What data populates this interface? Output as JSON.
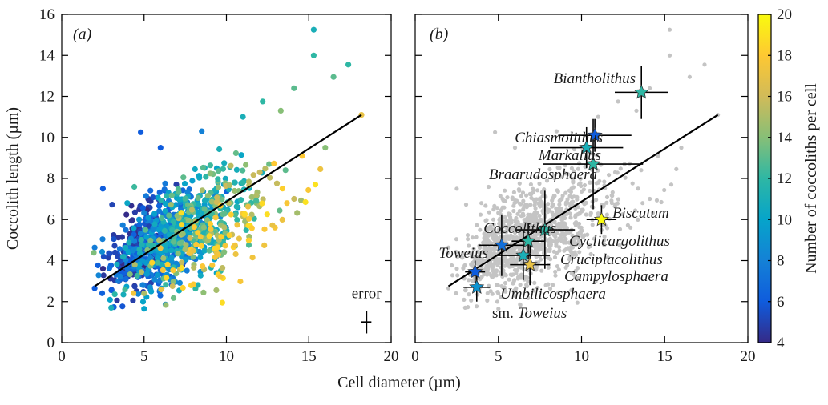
{
  "chart_data": [
    {
      "panel": "a",
      "type": "scatter",
      "panel_label": "(a)",
      "xlabel": "Cell diameter (µm)",
      "ylabel": "Coccolith length (µm)",
      "xlim": [
        0,
        20
      ],
      "ylim": [
        0,
        16
      ],
      "xticks": [
        0,
        5,
        10,
        15,
        20
      ],
      "yticks": [
        0,
        2,
        4,
        6,
        8,
        10,
        12,
        14,
        16
      ],
      "color_by": "Number of coccoliths per cell",
      "colormap": "parula",
      "fit_line": {
        "x": [
          2.0,
          18.2
        ],
        "y": [
          2.75,
          11.1
        ]
      },
      "error_label": "error",
      "error_bar": {
        "x": 18.5,
        "y": 1.0,
        "xerr": 0.3,
        "yerr": 0.55
      },
      "point_groups": [
        {
          "color_value": 5,
          "center": [
            4.6,
            4.7
          ],
          "sd": [
            1.0,
            1.05
          ],
          "count": 200
        },
        {
          "color_value": 7,
          "center": [
            5.9,
            4.8
          ],
          "sd": [
            1.3,
            1.05
          ],
          "count": 240
        },
        {
          "color_value": 9,
          "center": [
            6.9,
            5.0
          ],
          "sd": [
            1.6,
            1.05
          ],
          "count": 220
        },
        {
          "color_value": 11,
          "center": [
            8.0,
            5.8
          ],
          "sd": [
            1.9,
            1.3
          ],
          "count": 170
        },
        {
          "color_value": 13,
          "center": [
            8.6,
            5.9
          ],
          "sd": [
            2.0,
            1.4
          ],
          "count": 110
        },
        {
          "color_value": 15,
          "center": [
            9.1,
            5.6
          ],
          "sd": [
            2.0,
            1.3
          ],
          "count": 80
        },
        {
          "color_value": 18,
          "center": [
            9.3,
            4.7
          ],
          "sd": [
            2.2,
            1.1
          ],
          "count": 70
        }
      ],
      "points": [
        {
          "x": 15.3,
          "y": 15.25,
          "c": 11
        },
        {
          "x": 15.3,
          "y": 14.0,
          "c": 12
        },
        {
          "x": 17.4,
          "y": 13.55,
          "c": 12
        },
        {
          "x": 16.5,
          "y": 12.95,
          "c": 13
        },
        {
          "x": 18.2,
          "y": 11.1,
          "c": 17
        },
        {
          "x": 14.1,
          "y": 12.4,
          "c": 13
        },
        {
          "x": 12.2,
          "y": 11.75,
          "c": 12
        },
        {
          "x": 4.8,
          "y": 10.25,
          "c": 6
        },
        {
          "x": 14.6,
          "y": 9.1,
          "c": 18
        },
        {
          "x": 15.4,
          "y": 7.7,
          "c": 19
        },
        {
          "x": 14.8,
          "y": 6.85,
          "c": 19
        },
        {
          "x": 3.0,
          "y": 1.7,
          "c": 11
        },
        {
          "x": 5.0,
          "y": 1.65,
          "c": 10
        },
        {
          "x": 2.0,
          "y": 2.65,
          "c": 6
        },
        {
          "x": 2.5,
          "y": 7.5,
          "c": 6
        },
        {
          "x": 6.0,
          "y": 9.5,
          "c": 6
        },
        {
          "x": 8.5,
          "y": 10.3,
          "c": 8
        },
        {
          "x": 13.3,
          "y": 11.3,
          "c": 14
        },
        {
          "x": 11.0,
          "y": 11.0,
          "c": 11
        },
        {
          "x": 16.0,
          "y": 9.5,
          "c": 14
        }
      ]
    },
    {
      "panel": "b",
      "type": "scatter",
      "panel_label": "(b)",
      "xlim": [
        0,
        20
      ],
      "ylim": [
        0,
        16
      ],
      "xticks": [
        0,
        5,
        10,
        15,
        20
      ],
      "yticks": [
        0,
        2,
        4,
        6,
        8,
        10,
        12,
        14,
        16
      ],
      "background_color": "#c4c4c4",
      "fit_line": {
        "x": [
          2.0,
          18.2
        ],
        "y": [
          2.75,
          11.1
        ]
      },
      "genera": [
        {
          "name": "Biantholithus",
          "x": 13.6,
          "y": 12.2,
          "xerr": 1.6,
          "yerr": 1.3,
          "c": 12
        },
        {
          "name": "Chiasmolithus",
          "x": 10.8,
          "y": 10.1,
          "xerr": 2.2,
          "yerr": 0.8,
          "c": 6
        },
        {
          "name": "Markalius",
          "x": 10.3,
          "y": 9.5,
          "xerr": 2.2,
          "yerr": 1.0,
          "c": 11
        },
        {
          "name": "Braarudosphaera",
          "x": 10.7,
          "y": 8.7,
          "xerr": 3.0,
          "yerr": 2.2,
          "c": 12
        },
        {
          "name": "Biscutum",
          "x": 11.2,
          "y": 6.0,
          "xerr": 0.9,
          "yerr": 0.7,
          "c": 20
        },
        {
          "name": "Coccolithus",
          "x": 7.8,
          "y": 5.5,
          "xerr": 1.8,
          "yerr": 1.9,
          "c": 12
        },
        {
          "name": "Toweius",
          "x": 5.2,
          "y": 4.75,
          "xerr": 1.4,
          "yerr": 1.5,
          "c": 7
        },
        {
          "name": "Cyclicargolithus",
          "x": 6.8,
          "y": 4.95,
          "xerr": 1.0,
          "yerr": 0.9,
          "c": 12
        },
        {
          "name": "Cruciplacolithus",
          "x": 6.5,
          "y": 4.25,
          "xerr": 1.6,
          "yerr": 1.2,
          "c": 11
        },
        {
          "name": "Campylosphaera",
          "x": 6.9,
          "y": 3.8,
          "xerr": 1.2,
          "yerr": 1.0,
          "c": 17
        },
        {
          "name": "Umbilicosphaera",
          "x": 3.6,
          "y": 3.45,
          "xerr": 0.6,
          "yerr": 0.55,
          "c": 6
        },
        {
          "name": "sm. Toweius",
          "x": 3.7,
          "y": 2.7,
          "xerr": 0.8,
          "yerr": 0.7,
          "c": 9
        }
      ],
      "labels": [
        {
          "text": "Biantholithus",
          "italic": true
        },
        {
          "text": "Chiasmolithus",
          "italic": true
        },
        {
          "text": "Markalius",
          "italic": true
        },
        {
          "text": "Braarudosphaera",
          "italic": true
        },
        {
          "text": "Biscutum",
          "italic": true
        },
        {
          "text": "Coccolithus",
          "italic": true
        },
        {
          "text": "Toweius",
          "italic": true
        },
        {
          "text": "Cyclicargolithus",
          "italic": true
        },
        {
          "text": "Cruciplacolithus",
          "italic": true
        },
        {
          "text": "Campylosphaera",
          "italic": true
        },
        {
          "text": "Umbilicosphaera",
          "italic": true
        },
        {
          "text": "sm. Toweius",
          "italic": false
        }
      ]
    }
  ],
  "colorbar": {
    "label": "Number of coccoliths per cell",
    "range": [
      4,
      20
    ],
    "ticks": [
      4,
      6,
      8,
      10,
      12,
      14,
      16,
      18,
      20
    ],
    "colormap_stops": [
      "#352a87",
      "#0f5cdd",
      "#1481d6",
      "#06a4ca",
      "#2eb7a4",
      "#87bf77",
      "#d1bb59",
      "#fec832",
      "#f9fb0e"
    ]
  },
  "xlabel_shared": "Cell diameter (µm)"
}
